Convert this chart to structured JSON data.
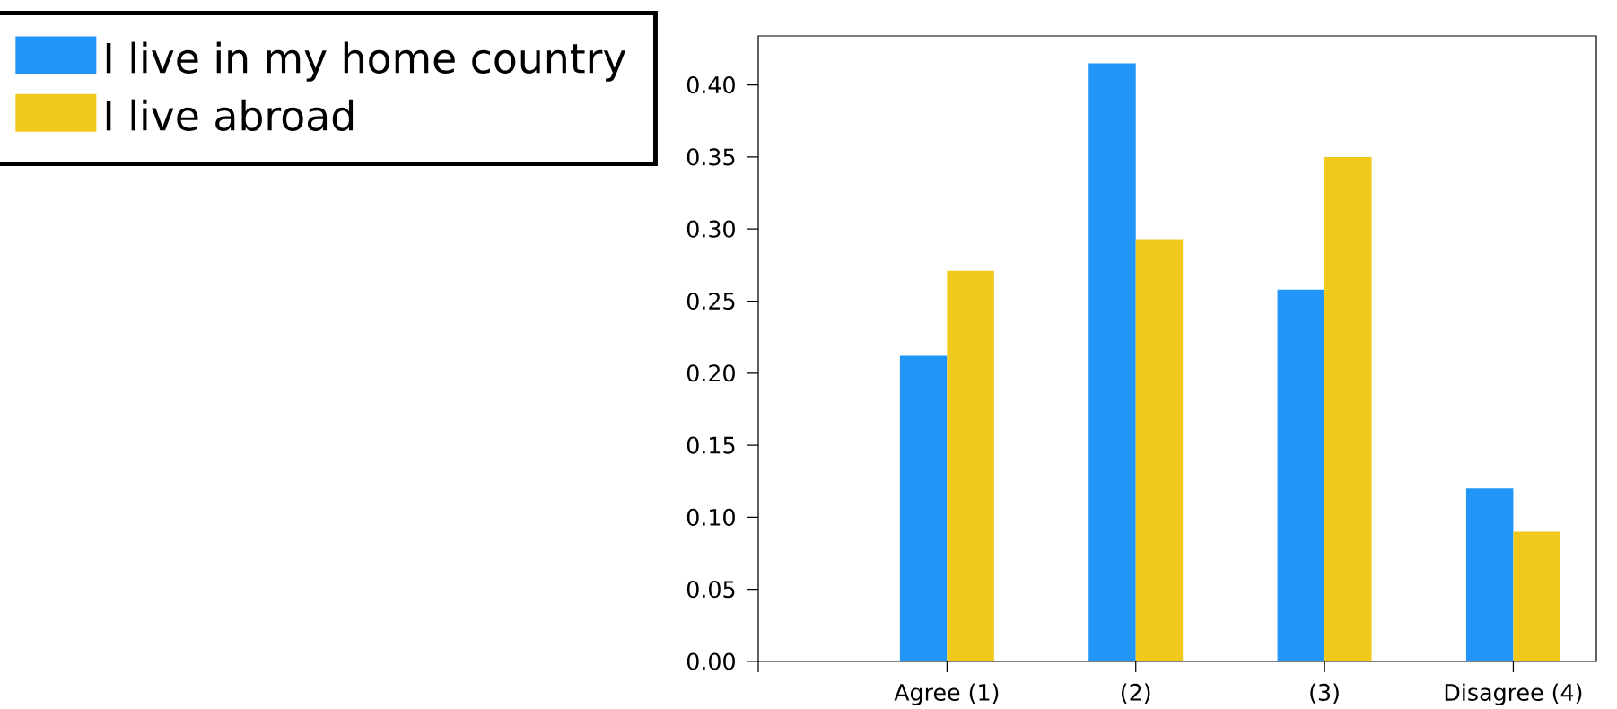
{
  "chart_data": {
    "type": "bar",
    "categories": [
      null,
      "Agree (1)",
      "(2)",
      "(3)",
      "Disagree (4)"
    ],
    "series": [
      {
        "name": "I live in my home country",
        "color": "#2196f8",
        "values": [
          null,
          0.212,
          0.415,
          0.258,
          0.12
        ]
      },
      {
        "name": "I live abroad",
        "color": "#f0c91c",
        "values": [
          null,
          0.271,
          0.293,
          0.35,
          0.09
        ]
      }
    ],
    "ylim": [
      0,
      0.434
    ],
    "yticks": [
      {
        "value": 0,
        "label": "0.00"
      },
      {
        "value": 0.05,
        "label": "0.05"
      },
      {
        "value": 0.1,
        "label": "0.10"
      },
      {
        "value": 0.15,
        "label": "0.15"
      },
      {
        "value": 0.2,
        "label": "0.20"
      },
      {
        "value": 0.25,
        "label": "0.25"
      },
      {
        "value": 0.3,
        "label": "0.30"
      },
      {
        "value": 0.35,
        "label": "0.35"
      },
      {
        "value": 0.4,
        "label": "0.40"
      }
    ],
    "legend": "top left"
  }
}
